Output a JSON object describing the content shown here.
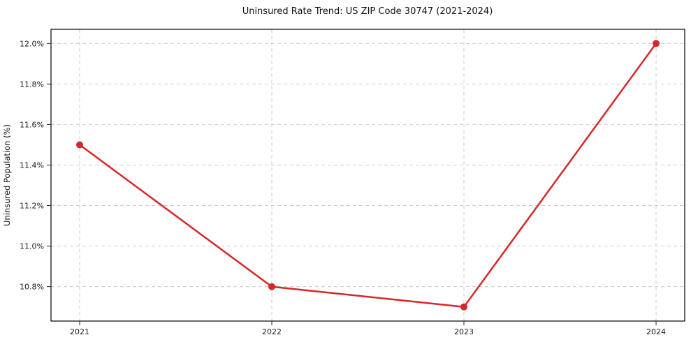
{
  "chart_data": {
    "type": "line",
    "title": "Uninsured Rate Trend: US ZIP Code 30747 (2021-2024)",
    "xlabel": "",
    "ylabel": "Uninsured Population (%)",
    "categories": [
      "2021",
      "2022",
      "2023",
      "2024"
    ],
    "values": [
      11.5,
      10.8,
      10.7,
      12.0
    ],
    "yticks": [
      {
        "value": 10.8,
        "label": "10.8%"
      },
      {
        "value": 11.0,
        "label": "11.0%"
      },
      {
        "value": 11.2,
        "label": "11.2%"
      },
      {
        "value": 11.4,
        "label": "11.4%"
      },
      {
        "value": 11.6,
        "label": "11.6%"
      },
      {
        "value": 11.8,
        "label": "11.8%"
      },
      {
        "value": 12.0,
        "label": "12.0%"
      }
    ],
    "ylim": [
      10.63,
      12.07
    ],
    "grid": true,
    "legend": "none",
    "line_color": "#d62728",
    "grid_color": "#cccccc",
    "marker": "circle"
  }
}
